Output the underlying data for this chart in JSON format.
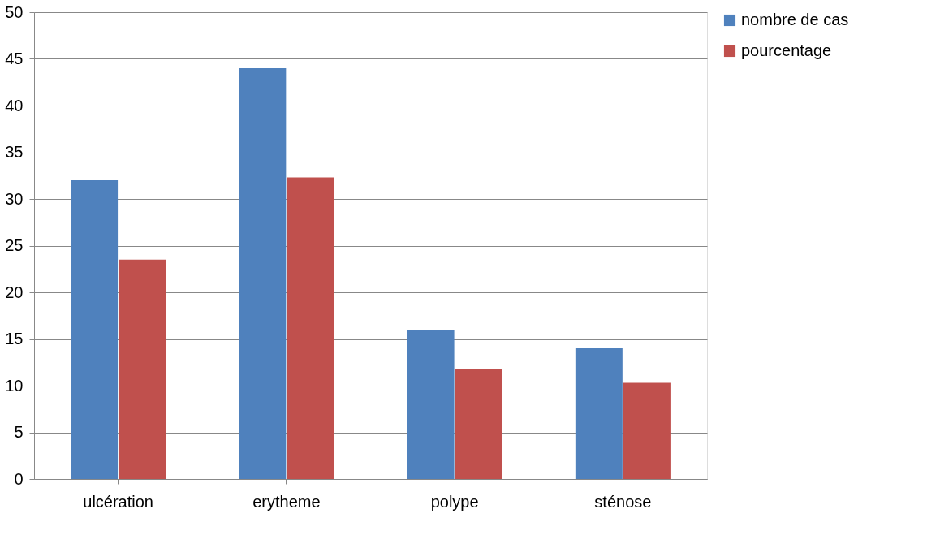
{
  "chart_data": {
    "type": "bar",
    "categories": [
      "ulcération",
      "erytheme",
      "polype",
      "sténose"
    ],
    "series": [
      {
        "name": "nombre de cas",
        "color": "#4f81bd",
        "values": [
          32,
          44,
          16,
          14
        ]
      },
      {
        "name": "pourcentage",
        "color": "#c0504d",
        "values": [
          23.5,
          32.3,
          11.8,
          10.3
        ]
      }
    ],
    "ylim": [
      0,
      50
    ],
    "yticks": [
      0,
      5,
      10,
      15,
      20,
      25,
      30,
      35,
      40,
      45,
      50
    ],
    "grid": "y",
    "legend": "right"
  }
}
